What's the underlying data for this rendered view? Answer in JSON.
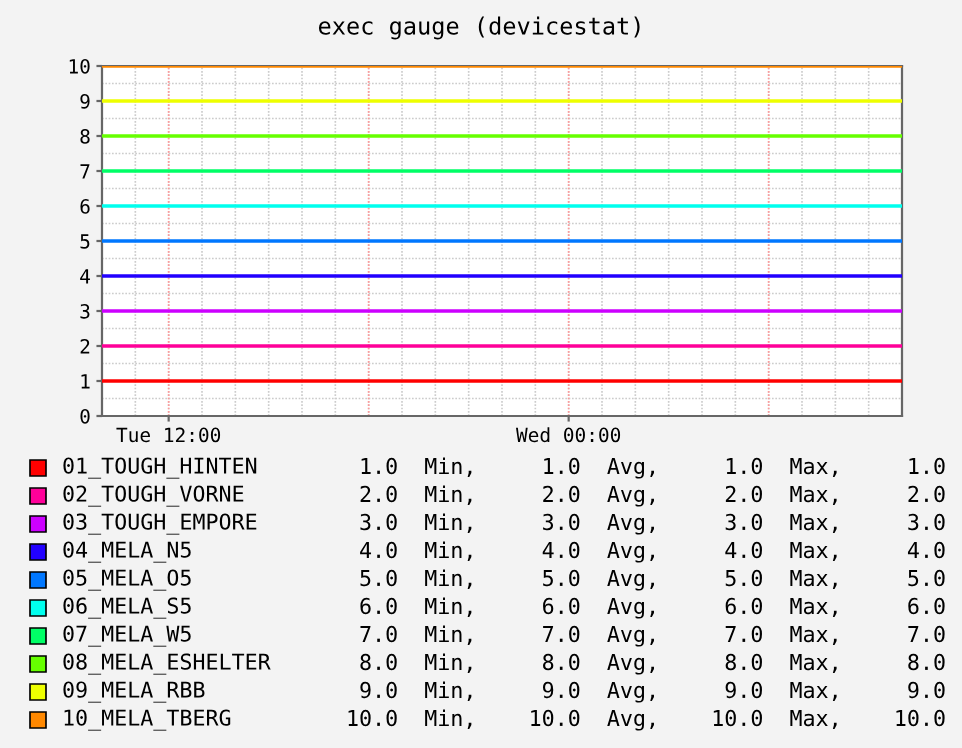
{
  "chart_data": {
    "type": "line",
    "title": "exec gauge (devicestat)",
    "categories": [
      null,
      null,
      "Tue 12:00",
      null,
      null,
      null,
      null,
      null,
      null,
      null,
      null,
      null,
      null,
      null,
      "Wed 00:00",
      null,
      null,
      null,
      null,
      null,
      null,
      null,
      null,
      null,
      null
    ],
    "ylim": [
      0,
      10
    ],
    "yticks": [
      0,
      1,
      2,
      3,
      4,
      5,
      6,
      7,
      8,
      9,
      10
    ],
    "grid": true,
    "legend": "bottom",
    "series": [
      {
        "name": "01_TOUGH_HINTEN",
        "color": "#ff0000",
        "values": [
          1,
          1,
          1,
          1,
          1,
          1,
          1,
          1,
          1,
          1,
          1,
          1,
          1,
          1,
          1,
          1,
          1,
          1,
          1,
          1,
          1,
          1,
          1,
          1,
          1
        ]
      },
      {
        "name": "02_TOUGH_VORNE",
        "color": "#ff0099",
        "values": [
          2,
          2,
          2,
          2,
          2,
          2,
          2,
          2,
          2,
          2,
          2,
          2,
          2,
          2,
          2,
          2,
          2,
          2,
          2,
          2,
          2,
          2,
          2,
          2,
          2
        ]
      },
      {
        "name": "03_TOUGH_EMPORE",
        "color": "#cc00ff",
        "values": [
          3,
          3,
          3,
          3,
          3,
          3,
          3,
          3,
          3,
          3,
          3,
          3,
          3,
          3,
          3,
          3,
          3,
          3,
          3,
          3,
          3,
          3,
          3,
          3,
          3
        ]
      },
      {
        "name": "04_MELA_N5",
        "color": "#2200ff",
        "values": [
          4,
          4,
          4,
          4,
          4,
          4,
          4,
          4,
          4,
          4,
          4,
          4,
          4,
          4,
          4,
          4,
          4,
          4,
          4,
          4,
          4,
          4,
          4,
          4,
          4
        ]
      },
      {
        "name": "05_MELA_O5",
        "color": "#0077ff",
        "values": [
          5,
          5,
          5,
          5,
          5,
          5,
          5,
          5,
          5,
          5,
          5,
          5,
          5,
          5,
          5,
          5,
          5,
          5,
          5,
          5,
          5,
          5,
          5,
          5,
          5
        ]
      },
      {
        "name": "06_MELA_S5",
        "color": "#00ffee",
        "values": [
          6,
          6,
          6,
          6,
          6,
          6,
          6,
          6,
          6,
          6,
          6,
          6,
          6,
          6,
          6,
          6,
          6,
          6,
          6,
          6,
          6,
          6,
          6,
          6,
          6
        ]
      },
      {
        "name": "07_MELA_W5",
        "color": "#00ff66",
        "values": [
          7,
          7,
          7,
          7,
          7,
          7,
          7,
          7,
          7,
          7,
          7,
          7,
          7,
          7,
          7,
          7,
          7,
          7,
          7,
          7,
          7,
          7,
          7,
          7,
          7
        ]
      },
      {
        "name": "08_MELA_ESHELTER",
        "color": "#66ff00",
        "values": [
          8,
          8,
          8,
          8,
          8,
          8,
          8,
          8,
          8,
          8,
          8,
          8,
          8,
          8,
          8,
          8,
          8,
          8,
          8,
          8,
          8,
          8,
          8,
          8,
          8
        ]
      },
      {
        "name": "09_MELA_RBB",
        "color": "#eeff00",
        "values": [
          9,
          9,
          9,
          9,
          9,
          9,
          9,
          9,
          9,
          9,
          9,
          9,
          9,
          9,
          9,
          9,
          9,
          9,
          9,
          9,
          9,
          9,
          9,
          9,
          9
        ]
      },
      {
        "name": "10_MELA_TBERG",
        "color": "#ff8800",
        "values": [
          10,
          10,
          10,
          10,
          10,
          10,
          10,
          10,
          10,
          10,
          10,
          10,
          10,
          10,
          10,
          10,
          10,
          10,
          10,
          10,
          10,
          10,
          10,
          10,
          10
        ]
      }
    ],
    "annotations": [
      "1.0  Min,     1.0  Avg,     1.0  Max,     1.0",
      "2.0  Min,     2.0  Avg,     2.0  Max,     2.0",
      "3.0  Min,     3.0  Avg,     3.0  Max,     3.0",
      "4.0  Min,     4.0  Avg,     4.0  Max,     4.0",
      "5.0  Min,     5.0  Avg,     5.0  Max,     5.0",
      "6.0  Min,     6.0  Avg,     6.0  Max,     6.0",
      "7.0  Min,     7.0  Avg,     7.0  Max,     7.0",
      "8.0  Min,     8.0  Avg,     8.0  Max,     8.0",
      "9.0  Min,     9.0  Avg,     9.0  Max,     9.0",
      "10.0  Min,    10.0  Avg,    10.0  Max,    10.0"
    ]
  }
}
